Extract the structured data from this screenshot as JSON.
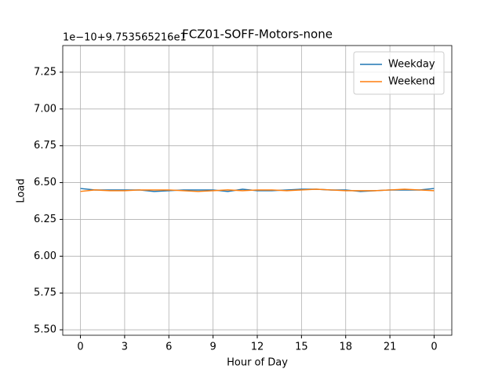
{
  "chart_data": {
    "type": "line",
    "title": "FCZ01-SOFF-Motors-none",
    "x_label": "Hour of Day",
    "y_label": "Load",
    "y_offset_text": "1e−10+9.753565216e1",
    "x": [
      0,
      1,
      2,
      3,
      4,
      5,
      6,
      7,
      8,
      9,
      10,
      11,
      12,
      13,
      14,
      15,
      16,
      17,
      18,
      19,
      20,
      21,
      22,
      23,
      24
    ],
    "series": [
      {
        "name": "Weekday",
        "color": "#1f77b4",
        "values": [
          6.46,
          6.45,
          6.45,
          6.45,
          6.45,
          6.44,
          6.445,
          6.45,
          6.45,
          6.45,
          6.44,
          6.455,
          6.445,
          6.445,
          6.45,
          6.455,
          6.455,
          6.45,
          6.45,
          6.44,
          6.445,
          6.45,
          6.45,
          6.45,
          6.46
        ]
      },
      {
        "name": "Weekend",
        "color": "#ff7f0e",
        "values": [
          6.44,
          6.45,
          6.445,
          6.445,
          6.45,
          6.45,
          6.45,
          6.445,
          6.44,
          6.445,
          6.45,
          6.445,
          6.45,
          6.45,
          6.445,
          6.45,
          6.455,
          6.45,
          6.445,
          6.445,
          6.445,
          6.45,
          6.455,
          6.45,
          6.445
        ]
      }
    ],
    "xlim": [
      -1.2,
      25.2
    ],
    "ylim": [
      5.463,
      7.431
    ],
    "xticks": [
      0,
      3,
      6,
      9,
      12,
      15,
      18,
      21,
      {
        "value": 24,
        "label": "0"
      }
    ],
    "yticks": [
      {
        "value": 5.5,
        "label": "5.50"
      },
      5.75,
      {
        "value": 6,
        "label": "6.00"
      },
      6.25,
      {
        "value": 6.5,
        "label": "6.50"
      },
      6.75,
      {
        "value": 7,
        "label": "7.00"
      },
      7.25
    ],
    "grid": true,
    "legend": "upper right"
  }
}
